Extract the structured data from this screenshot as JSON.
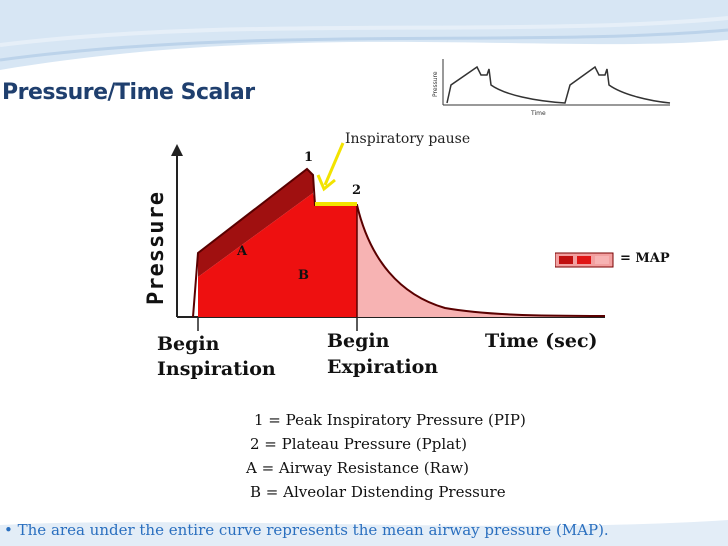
{
  "slide": {
    "title": "Pressure/Time Scalar",
    "footnote": "The area under the entire curve represents the mean airway pressure (MAP)."
  },
  "thumbnail": {
    "y_label": "Pressure",
    "x_label": "Time"
  },
  "diagram": {
    "y_axis_label": "Pressure",
    "x_axis_label": "Time (sec)",
    "inspiratory_pause_label": "Inspiratory pause",
    "marker_1": "1",
    "marker_2": "2",
    "region_a": "A",
    "region_b": "B",
    "begin_inspiration": [
      "Begin",
      "Inspiration"
    ],
    "begin_expiration": [
      "Begin",
      "Expiration"
    ],
    "map_label": "= MAP",
    "colors": {
      "region_a": "#a01010",
      "region_b": "#ee1010",
      "expiration_area": "#f7b3b3",
      "plateau_marker": "#f2e300",
      "pause_arrow": "#f2e300"
    }
  },
  "legend": [
    "1 = Peak Inspiratory Pressure (PIP)",
    "2 = Plateau Pressure (Pplat)",
    "A = Airway Resistance (Raw)",
    "B = Alveolar Distending Pressure"
  ]
}
